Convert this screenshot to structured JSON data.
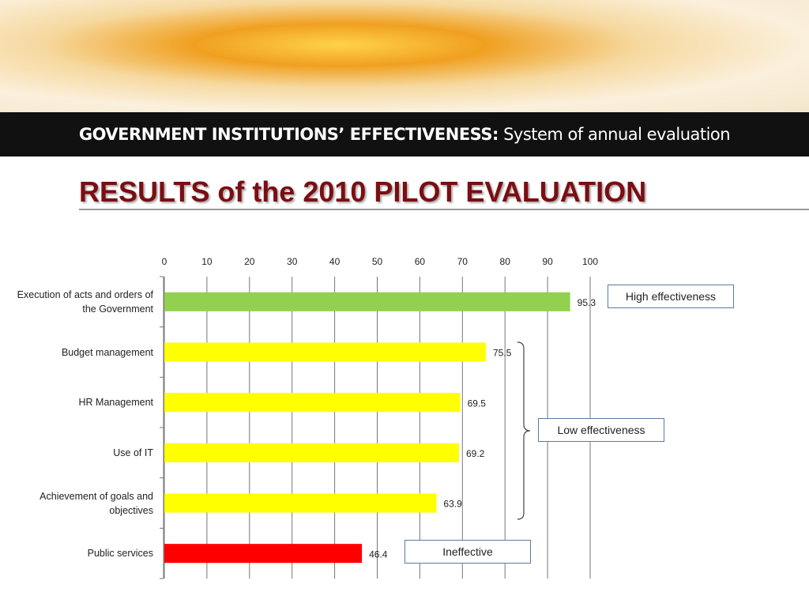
{
  "banner": {
    "bold": "GOVERNMENT INSTITUTIONS’ EFFECTIVENESS:",
    "text": "System of annual evaluation"
  },
  "chart_data": {
    "type": "bar",
    "orientation": "horizontal",
    "title": "RESULTS of the 2010 PILOT EVALUATION",
    "categories": [
      "Execution of acts and orders of the Government",
      "Budget management",
      "HR Management",
      "Use of IT",
      "Achievement of goals and objectives",
      "Public services"
    ],
    "values": [
      95.3,
      75.5,
      69.5,
      69.2,
      63.9,
      46.4
    ],
    "colors": [
      "#92d050",
      "#ffff00",
      "#ffff00",
      "#ffff00",
      "#ffff00",
      "#ff0000"
    ],
    "xlim": [
      0,
      100
    ],
    "xticks": [
      0,
      10,
      20,
      30,
      40,
      50,
      60,
      70,
      80,
      90,
      100
    ],
    "grid": true,
    "annotations": [
      "High effectiveness",
      "Low effectiveness",
      "Ineffective"
    ]
  }
}
